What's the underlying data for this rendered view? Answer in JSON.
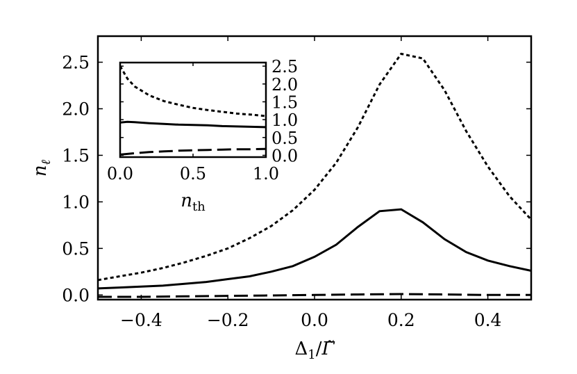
{
  "chart_data": [
    {
      "type": "line",
      "xlabel_parts": [
        "Δ",
        "1",
        "/",
        "Γ̃"
      ],
      "ylabel_parts": [
        "n",
        "ℓ"
      ],
      "xlim": [
        -0.5,
        0.5
      ],
      "ylim": [
        -0.05,
        2.78
      ],
      "xticks": [
        -0.4,
        -0.2,
        0.0,
        0.2,
        0.4
      ],
      "xtick_labels": [
        "−0.4",
        "−0.2",
        "0.0",
        "0.2",
        "0.4"
      ],
      "yticks": [
        0.0,
        0.5,
        1.0,
        1.5,
        2.0,
        2.5
      ],
      "ytick_labels": [
        "0.0",
        "0.5",
        "1.0",
        "1.5",
        "2.0",
        "2.5"
      ],
      "grid": false,
      "series": [
        {
          "style": "dotted",
          "color": "#000000",
          "x": [
            -0.5,
            -0.45,
            -0.4,
            -0.35,
            -0.3,
            -0.25,
            -0.2,
            -0.15,
            -0.1,
            -0.05,
            0.0,
            0.05,
            0.1,
            0.15,
            0.2,
            0.25,
            0.3,
            0.35,
            0.4,
            0.45,
            0.5
          ],
          "y": [
            0.16,
            0.2,
            0.24,
            0.29,
            0.35,
            0.42,
            0.5,
            0.61,
            0.74,
            0.91,
            1.13,
            1.42,
            1.8,
            2.26,
            2.59,
            2.54,
            2.2,
            1.76,
            1.38,
            1.06,
            0.81
          ]
        },
        {
          "style": "solid",
          "color": "#000000",
          "x": [
            -0.5,
            -0.45,
            -0.4,
            -0.35,
            -0.3,
            -0.25,
            -0.2,
            -0.15,
            -0.1,
            -0.05,
            0.0,
            0.05,
            0.1,
            0.15,
            0.2,
            0.25,
            0.3,
            0.35,
            0.4,
            0.45,
            0.5
          ],
          "y": [
            0.07,
            0.08,
            0.09,
            0.1,
            0.12,
            0.14,
            0.17,
            0.2,
            0.25,
            0.31,
            0.41,
            0.54,
            0.73,
            0.9,
            0.92,
            0.78,
            0.6,
            0.46,
            0.37,
            0.31,
            0.26
          ]
        },
        {
          "style": "dashed",
          "color": "#000000",
          "x": [
            -0.5,
            -0.4,
            -0.3,
            -0.2,
            -0.1,
            0.0,
            0.1,
            0.2,
            0.3,
            0.4,
            0.5
          ],
          "y": [
            -0.02,
            -0.02,
            -0.015,
            -0.01,
            -0.005,
            0.0,
            0.005,
            0.01,
            0.005,
            0.0,
            0.0
          ]
        }
      ]
    },
    {
      "type": "line",
      "inset": true,
      "xlabel_parts": [
        "n",
        "th"
      ],
      "xlim": [
        0.0,
        1.0
      ],
      "ylim": [
        -0.05,
        2.6
      ],
      "xticks": [
        0.0,
        0.5,
        1.0
      ],
      "xtick_labels": [
        "0.0",
        "0.5",
        "1.0"
      ],
      "yticks": [
        0.0,
        0.5,
        1.0,
        1.5,
        2.0,
        2.5
      ],
      "ytick_labels": [
        "0.0",
        "0.5",
        "1.0",
        "1.5",
        "2.0",
        "2.5"
      ],
      "ytick_side": "right",
      "grid": false,
      "series": [
        {
          "style": "dotted",
          "color": "#000000",
          "x": [
            0.0,
            0.05,
            0.1,
            0.2,
            0.3,
            0.4,
            0.5,
            0.6,
            0.7,
            0.8,
            0.9,
            1.0
          ],
          "y": [
            2.5,
            2.15,
            1.93,
            1.68,
            1.52,
            1.42,
            1.33,
            1.27,
            1.22,
            1.17,
            1.14,
            1.1
          ]
        },
        {
          "style": "solid",
          "color": "#000000",
          "x": [
            0.0,
            0.05,
            0.1,
            0.2,
            0.3,
            0.4,
            0.5,
            0.6,
            0.7,
            0.8,
            0.9,
            1.0
          ],
          "y": [
            0.92,
            0.94,
            0.93,
            0.9,
            0.88,
            0.86,
            0.85,
            0.84,
            0.82,
            0.81,
            0.8,
            0.79
          ]
        },
        {
          "style": "dashed",
          "color": "#000000",
          "x": [
            0.0,
            0.1,
            0.2,
            0.3,
            0.4,
            0.5,
            0.6,
            0.7,
            0.8,
            0.9,
            1.0
          ],
          "y": [
            0.02,
            0.06,
            0.09,
            0.11,
            0.13,
            0.14,
            0.15,
            0.16,
            0.17,
            0.17,
            0.18
          ]
        }
      ]
    }
  ]
}
